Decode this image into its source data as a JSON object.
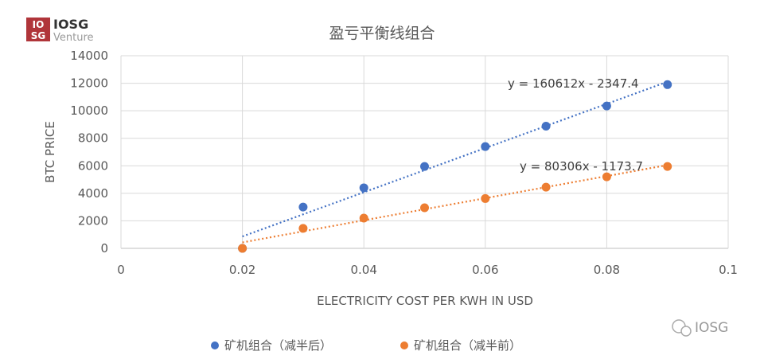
{
  "logo": {
    "text": "IOSG",
    "sub": "Venture",
    "mark": "IOSG",
    "color": "#b0353a"
  },
  "watermark": {
    "text": "IOSG",
    "icon": "wechat-icon"
  },
  "chart_data": {
    "type": "scatter",
    "title": "盈亏平衡线组合",
    "xlabel": "ELECTRICITY COST PER KWH IN USD",
    "ylabel": "BTC PRICE",
    "xlim": [
      0,
      0.1
    ],
    "ylim": [
      0,
      14000
    ],
    "xticks": [
      "0",
      "0.02",
      "0.04",
      "0.06",
      "0.08",
      "0.1"
    ],
    "yticks": [
      "0",
      "2000",
      "4000",
      "6000",
      "8000",
      "10000",
      "12000",
      "14000"
    ],
    "grid": true,
    "legend_position": "bottom",
    "series": [
      {
        "name": "矿机组合（减半后）",
        "color": "#4472c4",
        "x": [
          0.02,
          0.03,
          0.04,
          0.05,
          0.06,
          0.07,
          0.08,
          0.09
        ],
        "y": [
          0,
          3000,
          4400,
          5950,
          7400,
          8880,
          10350,
          11900
        ],
        "trendline": {
          "slope": 160612,
          "intercept": -2347.4,
          "label": "y = 160612x - 2347.4"
        }
      },
      {
        "name": "矿机组合（减半前）",
        "color": "#ed7d31",
        "x": [
          0.02,
          0.03,
          0.04,
          0.05,
          0.06,
          0.07,
          0.08,
          0.09
        ],
        "y": [
          0,
          1450,
          2200,
          2950,
          3620,
          4450,
          5200,
          5950
        ],
        "trendline": {
          "slope": 80306,
          "intercept": -1173.7,
          "label": "y = 80306x - 1173.7"
        }
      }
    ]
  }
}
